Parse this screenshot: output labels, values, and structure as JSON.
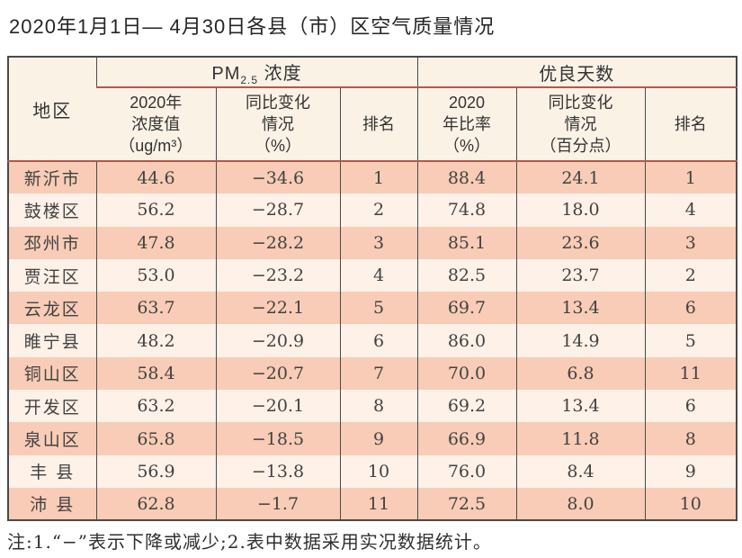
{
  "page": {
    "title": "2020年1月1日— 4月30日各县（市）区空气质量情况",
    "note": "注:1.“−”表示下降或减少;2.表中数据采用实况数据统计。"
  },
  "table": {
    "header": {
      "region": "地区",
      "group_pm": {
        "base": "PM",
        "sub": "2.5",
        "rest": " 浓度"
      },
      "group_days": "优良天数",
      "sub_cols": [
        "2020年\n浓度值\n（ug/m³）",
        "同比变化\n情况\n（%）",
        "排名",
        "2020\n年比率\n（%）",
        "同比变化\n情况\n（百分点）",
        "排名"
      ]
    },
    "rows": [
      [
        "新沂市",
        "44.6",
        "−34.6",
        "1",
        "88.4",
        "24.1",
        "1"
      ],
      [
        "鼓楼区",
        "56.2",
        "−28.7",
        "2",
        "74.8",
        "18.0",
        "4"
      ],
      [
        "邳州市",
        "47.8",
        "−28.2",
        "3",
        "85.1",
        "23.6",
        "3"
      ],
      [
        "贾汪区",
        "53.0",
        "−23.2",
        "4",
        "82.5",
        "23.7",
        "2"
      ],
      [
        "云龙区",
        "63.7",
        "−22.1",
        "5",
        "69.7",
        "13.4",
        "6"
      ],
      [
        "睢宁县",
        "48.2",
        "−20.9",
        "6",
        "86.0",
        "14.9",
        "5"
      ],
      [
        "铜山区",
        "58.4",
        "−20.7",
        "7",
        "70.0",
        "6.8",
        "11"
      ],
      [
        "开发区",
        "63.2",
        "−20.1",
        "8",
        "69.2",
        "13.4",
        "6"
      ],
      [
        "泉山区",
        "65.8",
        "−18.5",
        "9",
        "66.9",
        "11.8",
        "8"
      ],
      [
        "丰 县",
        "56.9",
        "−13.8",
        "10",
        "76.0",
        "8.4",
        "9"
      ],
      [
        "沛 县",
        "62.8",
        "−1.7",
        "11",
        "72.5",
        "8.0",
        "10"
      ]
    ]
  },
  "colors": {
    "row_dark": "#f8ccb6",
    "row_light": "#fdf1e8",
    "header_bg": "#fbf2e6",
    "accent_line": "#b5574a",
    "border_dark": "#4a4a4a",
    "text": "#3d3d3d"
  }
}
